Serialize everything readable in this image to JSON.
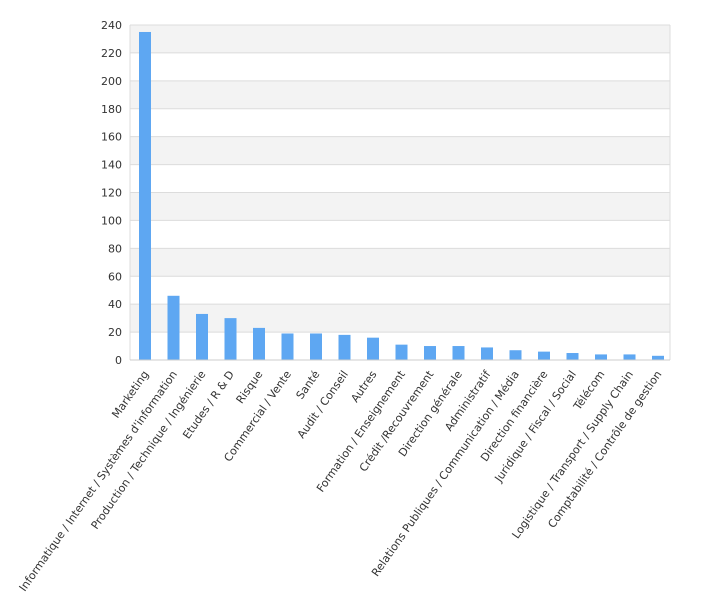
{
  "chart_data": {
    "type": "bar",
    "title": "",
    "xlabel": "",
    "ylabel": "",
    "categories": [
      "Marketing",
      "Informatique / Internet / Systèmes d'information",
      "Production / Technique / Ingénierie",
      "Etudes / R & D",
      "Risque",
      "Commercial / Vente",
      "Santé",
      "Audit / Conseil",
      "Autres",
      "Formation / Enseignement",
      "Crédit /Recouvrement",
      "Direction générale",
      "Administratif",
      "Relations Publiques / Communication / Média",
      "Direction financière",
      "Juridique / Fiscal / Social",
      "Télécom",
      "Logistique / Transport / Supply Chain",
      "Comptabilité / Contrôle de gestion"
    ],
    "values": [
      235,
      46,
      33,
      30,
      23,
      19,
      19,
      18,
      16,
      11,
      10,
      10,
      9,
      7,
      6,
      5,
      4,
      4,
      3
    ],
    "ylim": [
      0,
      240
    ],
    "yticks": [
      0,
      20,
      40,
      60,
      80,
      100,
      120,
      140,
      160,
      180,
      200,
      220,
      240
    ],
    "grid": true,
    "legend": "none",
    "colors": {
      "bar": "#5ea7f2",
      "band": "#f3f3f3",
      "grid": "#dcdcdc",
      "axis": "#cccccc",
      "text": "#333333"
    }
  }
}
